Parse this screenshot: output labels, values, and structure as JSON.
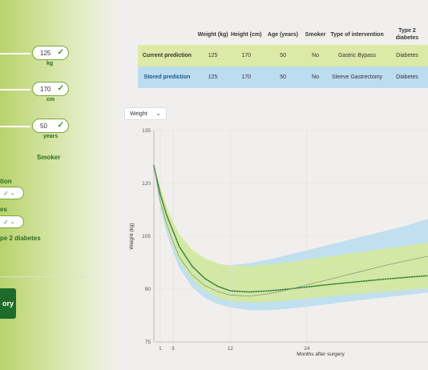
{
  "sidebar": {
    "weight": {
      "value": "125",
      "unit": "kg"
    },
    "height": {
      "value": "170",
      "unit": "cm"
    },
    "age": {
      "value": "50",
      "unit": "years"
    },
    "smoker_label": "Smoker",
    "intervention_label_fragment": "tion",
    "diabetes_label_fragment": "es",
    "type2_fragment": "pe 2 diabetes",
    "submit_label_fragment": "ory"
  },
  "table": {
    "headers": [
      "Weight (kg)",
      "Height (cm)",
      "Age (years)",
      "Smoker",
      "Type of intervention",
      "Type 2 diabetes"
    ],
    "rows": [
      {
        "label": "Current prediction",
        "weight": "125",
        "height": "170",
        "age": "50",
        "smoker": "No",
        "intervention": "Gastric Bypass",
        "diabetes": "Diabetes"
      },
      {
        "label": "Stored prediction",
        "weight": "125",
        "height": "170",
        "age": "50",
        "smoker": "No",
        "intervention": "Sleeve Gastrectomy",
        "diabetes": "Diabetes"
      }
    ]
  },
  "dropdown": {
    "selected": "Weight"
  },
  "chart_data": {
    "type": "line",
    "xlabel": "Months after surgery",
    "ylabel": "Weight (kg)",
    "x_ticks": [
      1,
      3,
      12,
      24
    ],
    "y_ticks": [
      75,
      90,
      105,
      120,
      135
    ],
    "xlim": [
      0,
      43
    ],
    "ylim": [
      75,
      135
    ],
    "series": [
      {
        "style": "dotted",
        "color": "#2e7d32",
        "x": [
          0,
          1,
          2,
          3,
          4,
          6,
          8,
          10,
          12,
          15,
          18,
          21,
          24,
          28,
          32,
          36,
          40,
          43
        ],
        "y": [
          125,
          117,
          111,
          106.5,
          102,
          96.5,
          93,
          90.8,
          89.5,
          89.2,
          89.5,
          90,
          90.6,
          91.4,
          92.1,
          92.8,
          93.4,
          93.8
        ]
      },
      {
        "style": "thin",
        "color": "#7a8f7a",
        "x": [
          0,
          1,
          2,
          3,
          4,
          6,
          8,
          10,
          12,
          15,
          18,
          21,
          24,
          28,
          32,
          36,
          40,
          43
        ],
        "y": [
          125,
          115,
          108.5,
          103.5,
          99,
          94,
          91,
          89.3,
          88.3,
          88,
          88.7,
          89.8,
          91.2,
          93,
          94.8,
          96.6,
          98.2,
          99.3
        ]
      }
    ],
    "bands": [
      {
        "color": "#b7dcef",
        "x": [
          0,
          1,
          2,
          3,
          4,
          6,
          8,
          10,
          12,
          15,
          18,
          21,
          24,
          28,
          32,
          36,
          40,
          43
        ],
        "upper": [
          125,
          118.5,
          112.8,
          108.6,
          105,
          100.5,
          98.2,
          97,
          96.8,
          97.4,
          98.4,
          99.7,
          101,
          102.8,
          104.6,
          106.4,
          108.2,
          110
        ],
        "lower": [
          125,
          113,
          106,
          100.5,
          96,
          90.5,
          87.5,
          85.8,
          84.8,
          84,
          84,
          84.4,
          85,
          85.9,
          86.8,
          87.6,
          88.4,
          89
        ]
      },
      {
        "color": "#d6ea97",
        "x": [
          0,
          1,
          2,
          3,
          4,
          6,
          8,
          10,
          12,
          15,
          18,
          21,
          24,
          28,
          32,
          36,
          40,
          43
        ],
        "upper": [
          125,
          119,
          113.5,
          109.2,
          105.6,
          101.2,
          98.8,
          97.3,
          96.6,
          96.6,
          97,
          97.6,
          98.4,
          99.4,
          100.4,
          101.4,
          102.4,
          103.3
        ],
        "lower": [
          125,
          114,
          107.5,
          102.5,
          98,
          92.8,
          89.5,
          87.6,
          86.6,
          86.2,
          86.4,
          86.8,
          87.3,
          88,
          88.6,
          89.2,
          89.8,
          90.3
        ]
      }
    ]
  }
}
